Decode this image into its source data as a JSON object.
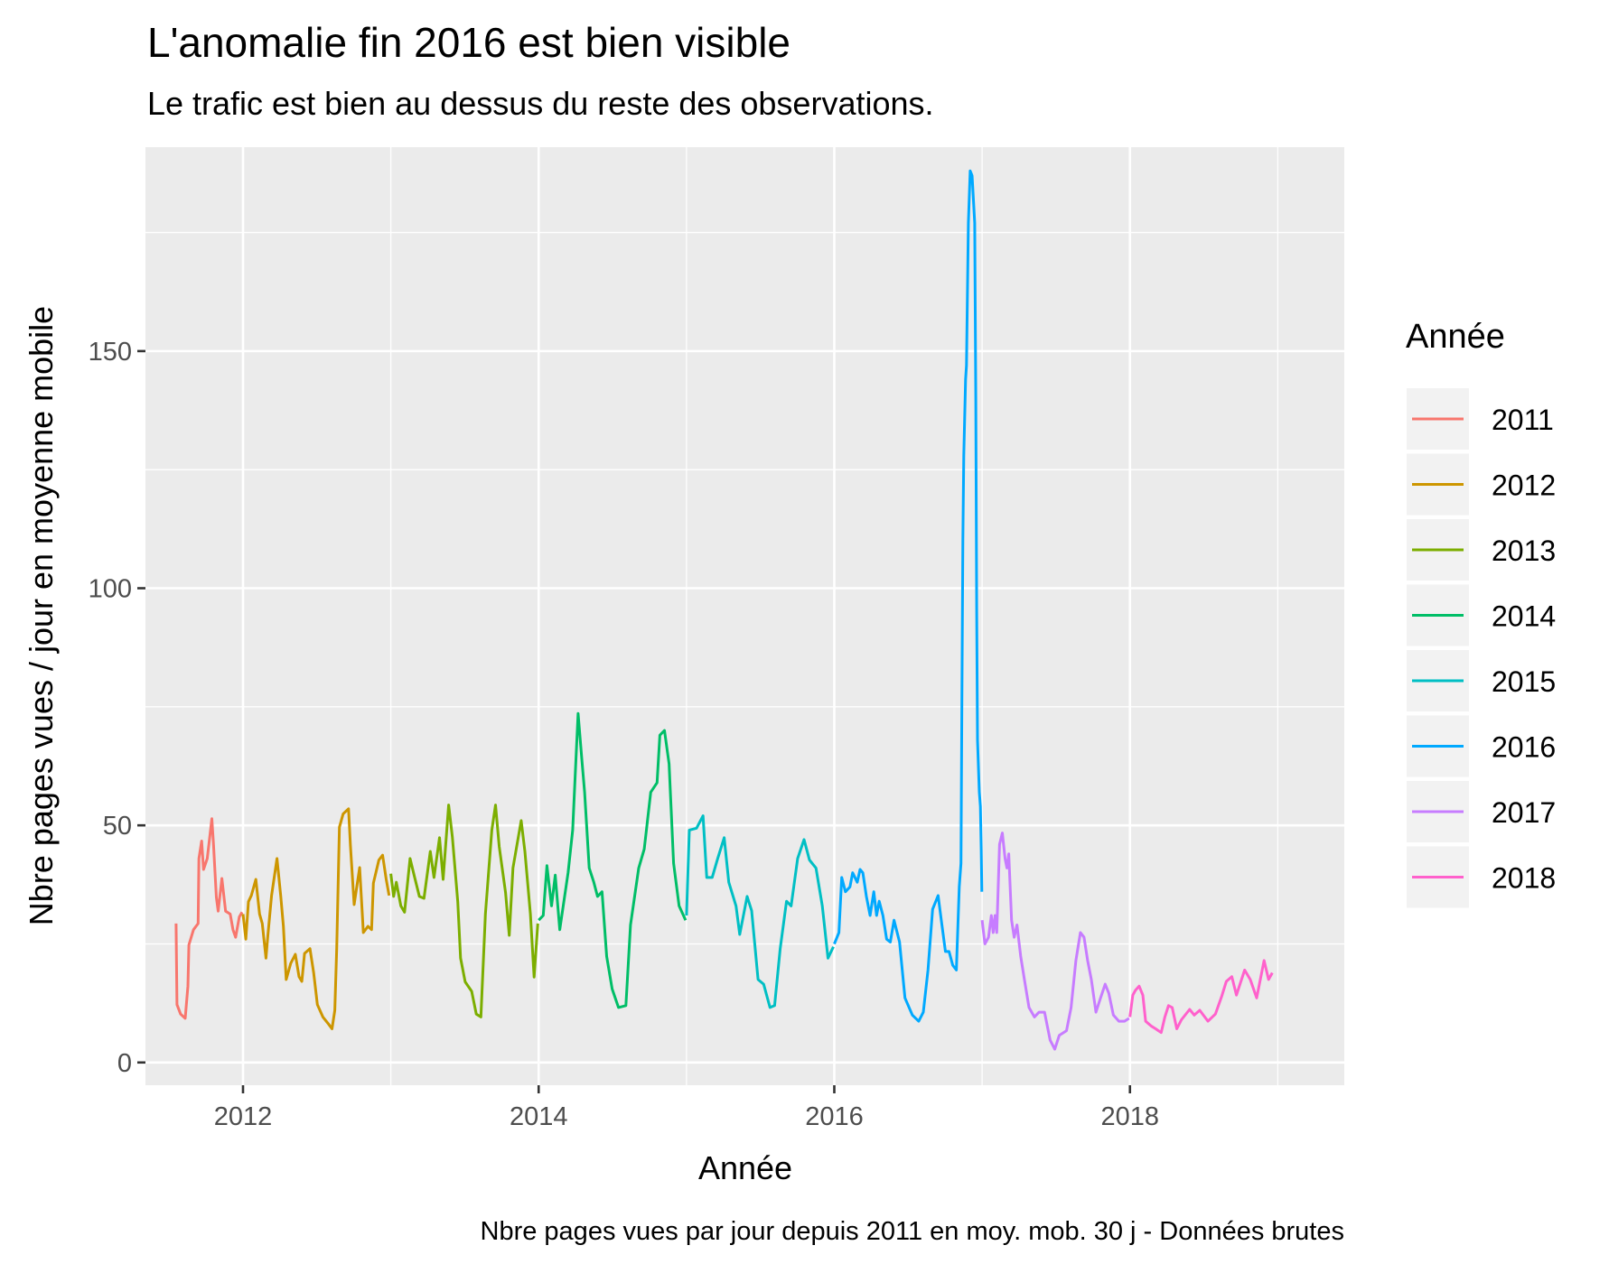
{
  "chart_data": {
    "type": "line",
    "title": "L'anomalie fin 2016 est bien visible",
    "subtitle": "Le trafic est bien au dessus du reste des observations.",
    "xlabel": "Année",
    "ylabel": "Nbre pages vues / jour en moyenne mobile",
    "caption": "Nbre pages vues par jour depuis 2011 en moy. mob. 30 j - Données brutes",
    "xlim": [
      2011.34,
      2019.45
    ],
    "ylim": [
      -4.8,
      193
    ],
    "x_ticks": [
      2012,
      2014,
      2016,
      2018
    ],
    "x_tick_labels": [
      "2012",
      "2014",
      "2016",
      "2018"
    ],
    "y_ticks": [
      0,
      50,
      100,
      150
    ],
    "y_tick_labels": [
      "0",
      "50",
      "100",
      "150"
    ],
    "x_minor_ticks": [
      2013,
      2015,
      2017,
      2019
    ],
    "y_minor_ticks": [
      25,
      75,
      125,
      175
    ],
    "grid": true,
    "background": "#ebebeb",
    "legend": {
      "title": "Année",
      "position": "right"
    },
    "series": [
      {
        "name": "2011",
        "color": "#F8766D",
        "points": [
          [
            2011.547,
            29.3
          ],
          [
            2011.553,
            12.2
          ],
          [
            2011.578,
            10.2
          ],
          [
            2011.609,
            9.3
          ],
          [
            2011.627,
            16.1
          ],
          [
            2011.634,
            24.8
          ],
          [
            2011.665,
            28
          ],
          [
            2011.696,
            29.3
          ],
          [
            2011.702,
            43
          ],
          [
            2011.72,
            46.7
          ],
          [
            2011.733,
            40.7
          ],
          [
            2011.758,
            43
          ],
          [
            2011.789,
            51.4
          ],
          [
            2011.801,
            45.7
          ],
          [
            2011.82,
            34.8
          ],
          [
            2011.832,
            31.9
          ],
          [
            2011.857,
            38.8
          ],
          [
            2011.882,
            31.9
          ],
          [
            2011.913,
            31.3
          ],
          [
            2011.932,
            28
          ],
          [
            2011.95,
            26.4
          ],
          [
            2011.975,
            30.7
          ],
          [
            2011.994,
            31.7
          ]
        ]
      },
      {
        "name": "2012",
        "color": "#CD9600",
        "points": [
          [
            2012.0,
            31.3
          ],
          [
            2012.019,
            26
          ],
          [
            2012.037,
            33.9
          ],
          [
            2012.056,
            35.2
          ],
          [
            2012.087,
            38.6
          ],
          [
            2012.112,
            31.3
          ],
          [
            2012.13,
            29.3
          ],
          [
            2012.155,
            22
          ],
          [
            2012.168,
            26.8
          ],
          [
            2012.193,
            35.2
          ],
          [
            2012.23,
            43
          ],
          [
            2012.255,
            35.2
          ],
          [
            2012.273,
            28.7
          ],
          [
            2012.292,
            17.5
          ],
          [
            2012.323,
            20.9
          ],
          [
            2012.354,
            22.8
          ],
          [
            2012.379,
            18.1
          ],
          [
            2012.398,
            17.1
          ],
          [
            2012.416,
            23
          ],
          [
            2012.453,
            24
          ],
          [
            2012.478,
            18.9
          ],
          [
            2012.503,
            12.2
          ],
          [
            2012.54,
            9.6
          ],
          [
            2012.578,
            8.1
          ],
          [
            2012.602,
            7.1
          ],
          [
            2012.621,
            11
          ],
          [
            2012.634,
            24
          ],
          [
            2012.652,
            49.6
          ],
          [
            2012.677,
            52.4
          ],
          [
            2012.714,
            53.5
          ],
          [
            2012.727,
            45.7
          ],
          [
            2012.752,
            33.3
          ],
          [
            2012.789,
            41.1
          ],
          [
            2012.814,
            27.4
          ],
          [
            2012.845,
            28.7
          ],
          [
            2012.87,
            28
          ],
          [
            2012.882,
            37.8
          ],
          [
            2012.919,
            42.7
          ],
          [
            2012.944,
            43.7
          ],
          [
            2012.969,
            38.6
          ],
          [
            2012.988,
            35.2
          ]
        ]
      },
      {
        "name": "2013",
        "color": "#7CAE00",
        "points": [
          [
            2013.0,
            39.8
          ],
          [
            2013.019,
            35
          ],
          [
            2013.037,
            38
          ],
          [
            2013.068,
            33
          ],
          [
            2013.093,
            31.7
          ],
          [
            2013.13,
            43
          ],
          [
            2013.161,
            39
          ],
          [
            2013.193,
            35
          ],
          [
            2013.224,
            34.6
          ],
          [
            2013.267,
            44.5
          ],
          [
            2013.292,
            39
          ],
          [
            2013.329,
            47.4
          ],
          [
            2013.354,
            38.6
          ],
          [
            2013.391,
            54.3
          ],
          [
            2013.416,
            47.6
          ],
          [
            2013.453,
            33.9
          ],
          [
            2013.472,
            22
          ],
          [
            2013.503,
            17
          ],
          [
            2013.547,
            15
          ],
          [
            2013.578,
            10.2
          ],
          [
            2013.609,
            9.6
          ],
          [
            2013.64,
            31.3
          ],
          [
            2013.683,
            49
          ],
          [
            2013.708,
            54.3
          ],
          [
            2013.733,
            45.5
          ],
          [
            2013.776,
            35.8
          ],
          [
            2013.801,
            26.8
          ],
          [
            2013.826,
            41
          ],
          [
            2013.857,
            46.5
          ],
          [
            2013.882,
            51
          ],
          [
            2013.907,
            44.5
          ],
          [
            2013.944,
            31.3
          ],
          [
            2013.969,
            18
          ],
          [
            2013.994,
            29.3
          ]
        ]
      },
      {
        "name": "2014",
        "color": "#00BE67",
        "points": [
          [
            2014.0,
            30
          ],
          [
            2014.031,
            31
          ],
          [
            2014.056,
            41.5
          ],
          [
            2014.087,
            33
          ],
          [
            2014.112,
            39.5
          ],
          [
            2014.143,
            28
          ],
          [
            2014.199,
            40
          ],
          [
            2014.23,
            49
          ],
          [
            2014.248,
            61
          ],
          [
            2014.267,
            73.6
          ],
          [
            2014.292,
            64
          ],
          [
            2014.311,
            57
          ],
          [
            2014.342,
            41
          ],
          [
            2014.373,
            38
          ],
          [
            2014.398,
            35
          ],
          [
            2014.429,
            36
          ],
          [
            2014.46,
            22.4
          ],
          [
            2014.497,
            15.5
          ],
          [
            2014.54,
            11.6
          ],
          [
            2014.59,
            12
          ],
          [
            2014.621,
            29
          ],
          [
            2014.677,
            41
          ],
          [
            2014.714,
            45
          ],
          [
            2014.758,
            57
          ],
          [
            2014.801,
            59
          ],
          [
            2014.82,
            69
          ],
          [
            2014.851,
            70
          ],
          [
            2014.882,
            63
          ],
          [
            2014.913,
            42
          ],
          [
            2014.95,
            33
          ],
          [
            2014.994,
            30
          ]
        ]
      },
      {
        "name": "2015",
        "color": "#00BFC4",
        "points": [
          [
            2015.0,
            31
          ],
          [
            2015.019,
            49
          ],
          [
            2015.068,
            49.4
          ],
          [
            2015.112,
            52
          ],
          [
            2015.137,
            39
          ],
          [
            2015.174,
            39
          ],
          [
            2015.211,
            43
          ],
          [
            2015.255,
            47.4
          ],
          [
            2015.286,
            38
          ],
          [
            2015.335,
            33
          ],
          [
            2015.36,
            27
          ],
          [
            2015.41,
            35
          ],
          [
            2015.441,
            32
          ],
          [
            2015.484,
            17.5
          ],
          [
            2015.522,
            16.5
          ],
          [
            2015.565,
            11.6
          ],
          [
            2015.596,
            12
          ],
          [
            2015.634,
            24
          ],
          [
            2015.677,
            34
          ],
          [
            2015.708,
            33
          ],
          [
            2015.752,
            43
          ],
          [
            2015.795,
            47
          ],
          [
            2015.832,
            42.7
          ],
          [
            2015.876,
            41
          ],
          [
            2015.919,
            33
          ],
          [
            2015.957,
            22
          ],
          [
            2015.994,
            24.4
          ]
        ]
      },
      {
        "name": "2016",
        "color": "#00A9FF",
        "points": [
          [
            2016.0,
            25
          ],
          [
            2016.031,
            27.4
          ],
          [
            2016.05,
            39
          ],
          [
            2016.075,
            36
          ],
          [
            2016.106,
            37
          ],
          [
            2016.124,
            40
          ],
          [
            2016.155,
            38
          ],
          [
            2016.174,
            40.7
          ],
          [
            2016.193,
            40
          ],
          [
            2016.217,
            35
          ],
          [
            2016.242,
            31
          ],
          [
            2016.267,
            36
          ],
          [
            2016.286,
            31
          ],
          [
            2016.304,
            34
          ],
          [
            2016.329,
            31
          ],
          [
            2016.354,
            26
          ],
          [
            2016.379,
            25.4
          ],
          [
            2016.404,
            30
          ],
          [
            2016.441,
            25.4
          ],
          [
            2016.478,
            13.6
          ],
          [
            2016.528,
            10
          ],
          [
            2016.571,
            8.7
          ],
          [
            2016.602,
            10.6
          ],
          [
            2016.634,
            19.5
          ],
          [
            2016.665,
            32.3
          ],
          [
            2016.702,
            35.2
          ],
          [
            2016.727,
            29.3
          ],
          [
            2016.752,
            23.4
          ],
          [
            2016.776,
            23.4
          ],
          [
            2016.801,
            20.5
          ],
          [
            2016.826,
            19.5
          ],
          [
            2016.845,
            37
          ],
          [
            2016.857,
            42
          ],
          [
            2016.863,
            76
          ],
          [
            2016.87,
            110
          ],
          [
            2016.876,
            128
          ],
          [
            2016.888,
            144
          ],
          [
            2016.894,
            147
          ],
          [
            2016.907,
            177
          ],
          [
            2016.919,
            188
          ],
          [
            2016.932,
            187
          ],
          [
            2016.95,
            177
          ],
          [
            2016.957,
            140
          ],
          [
            2016.963,
            95
          ],
          [
            2016.969,
            68
          ],
          [
            2016.981,
            57
          ],
          [
            2016.988,
            54
          ],
          [
            2016.994,
            45
          ],
          [
            2016.998,
            36
          ]
        ]
      },
      {
        "name": "2017",
        "color": "#C77CFF",
        "points": [
          [
            2017.0,
            30
          ],
          [
            2017.019,
            25
          ],
          [
            2017.043,
            26.4
          ],
          [
            2017.062,
            31
          ],
          [
            2017.075,
            27.4
          ],
          [
            2017.087,
            31
          ],
          [
            2017.099,
            27.4
          ],
          [
            2017.118,
            46
          ],
          [
            2017.137,
            48.4
          ],
          [
            2017.155,
            43
          ],
          [
            2017.168,
            41
          ],
          [
            2017.18,
            44
          ],
          [
            2017.199,
            30
          ],
          [
            2017.217,
            26.4
          ],
          [
            2017.236,
            29
          ],
          [
            2017.261,
            22.4
          ],
          [
            2017.286,
            17.5
          ],
          [
            2017.317,
            11.6
          ],
          [
            2017.354,
            9.6
          ],
          [
            2017.385,
            10.6
          ],
          [
            2017.422,
            10.6
          ],
          [
            2017.46,
            4.7
          ],
          [
            2017.491,
            2.8
          ],
          [
            2017.522,
            5.7
          ],
          [
            2017.571,
            6.7
          ],
          [
            2017.602,
            11.6
          ],
          [
            2017.634,
            21.5
          ],
          [
            2017.665,
            27.4
          ],
          [
            2017.689,
            26.4
          ],
          [
            2017.714,
            21.5
          ],
          [
            2017.739,
            17.5
          ],
          [
            2017.77,
            10.6
          ],
          [
            2017.801,
            13.6
          ],
          [
            2017.832,
            16.5
          ],
          [
            2017.857,
            14.6
          ],
          [
            2017.888,
            10
          ],
          [
            2017.925,
            8.7
          ],
          [
            2017.963,
            8.7
          ],
          [
            2017.994,
            9.3
          ]
        ]
      },
      {
        "name": "2018",
        "color": "#FF61CC",
        "points": [
          [
            2018.0,
            9.6
          ],
          [
            2018.019,
            14.2
          ],
          [
            2018.037,
            15.2
          ],
          [
            2018.062,
            16.1
          ],
          [
            2018.087,
            14.2
          ],
          [
            2018.106,
            8.7
          ],
          [
            2018.143,
            7.7
          ],
          [
            2018.174,
            7.1
          ],
          [
            2018.211,
            6.3
          ],
          [
            2018.236,
            9.6
          ],
          [
            2018.261,
            12
          ],
          [
            2018.286,
            11.6
          ],
          [
            2018.317,
            7.1
          ],
          [
            2018.348,
            9
          ],
          [
            2018.404,
            11.2
          ],
          [
            2018.435,
            10
          ],
          [
            2018.472,
            11
          ],
          [
            2018.528,
            8.7
          ],
          [
            2018.578,
            10.2
          ],
          [
            2018.621,
            14
          ],
          [
            2018.652,
            17.1
          ],
          [
            2018.689,
            18.1
          ],
          [
            2018.72,
            14.2
          ],
          [
            2018.776,
            19.5
          ],
          [
            2018.814,
            17.5
          ],
          [
            2018.857,
            13.6
          ],
          [
            2018.907,
            21.5
          ],
          [
            2018.938,
            17.5
          ],
          [
            2018.963,
            18.9
          ]
        ]
      }
    ]
  }
}
